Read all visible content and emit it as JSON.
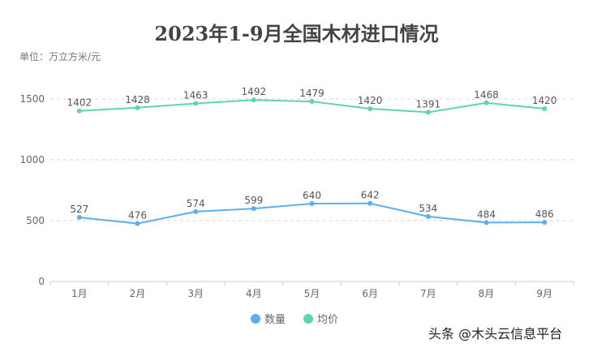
{
  "chart_data": {
    "type": "line",
    "title": "2023年1-9月全国木材进口情况",
    "ylabel": "单位：万立方米/元",
    "categories": [
      "1月",
      "2月",
      "3月",
      "4月",
      "5月",
      "6月",
      "7月",
      "8月",
      "9月"
    ],
    "yticks": [
      0,
      500,
      1000,
      1500
    ],
    "ylim": [
      0,
      1500
    ],
    "grid": true,
    "legend_position": "bottom",
    "series": [
      {
        "name": "数量",
        "color": "#5aaef2",
        "values": [
          527,
          476,
          574,
          599,
          640,
          642,
          534,
          484,
          486
        ]
      },
      {
        "name": "均价",
        "color": "#5fd6a9",
        "values": [
          1402,
          1428,
          1463,
          1492,
          1479,
          1420,
          1391,
          1468,
          1420
        ]
      }
    ]
  },
  "watermark": "头条 @木头云信息平台"
}
